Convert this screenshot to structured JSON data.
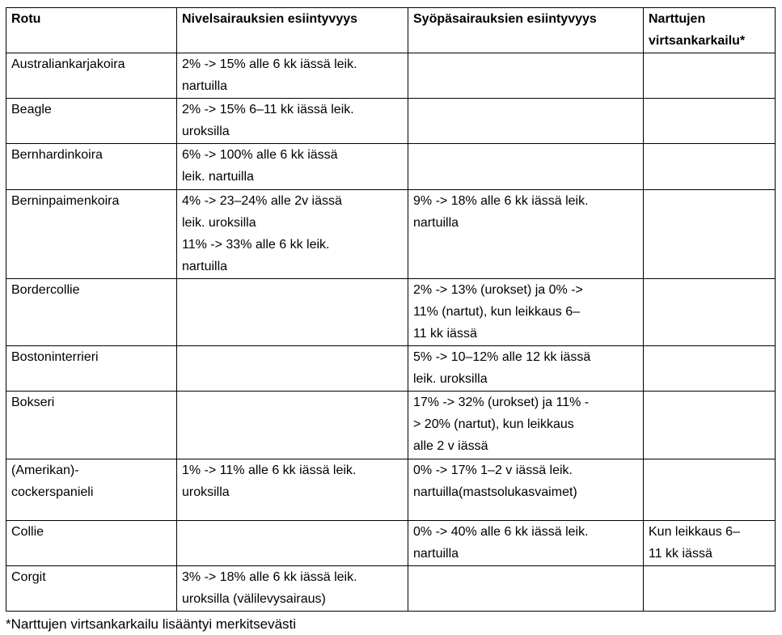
{
  "table": {
    "columns": [
      "Rotu",
      "Nivelsairauksien esiintyvyys",
      "Syöpäsairauksien esiintyvyys",
      "Narttujen virtsankarkailu*"
    ],
    "rows": [
      {
        "breed": "Australiankarjakoira",
        "nivel": "2% -> 15% alle 6 kk iässä leik.\nnartuilla",
        "syopa": "",
        "narttu": ""
      },
      {
        "breed": "Beagle",
        "nivel": "2% -> 15% 6–11 kk iässä leik.\nuroksilla",
        "syopa": "",
        "narttu": ""
      },
      {
        "breed": "Bernhardinkoira",
        "nivel": "6% -> 100% alle 6 kk iässä\nleik. nartuilla",
        "syopa": "",
        "narttu": ""
      },
      {
        "breed": "Berninpaimenkoira",
        "nivel": "4% -> 23–24% alle 2v iässä\nleik. uroksilla\n11% -> 33% alle 6 kk leik.\nnartuilla",
        "syopa": "9% -> 18% alle 6 kk iässä leik.\nnartuilla",
        "narttu": ""
      },
      {
        "breed": "Bordercollie",
        "nivel": "",
        "syopa": "2% -> 13% (urokset) ja 0% ->\n11% (nartut), kun leikkaus 6–\n11 kk iässä",
        "narttu": ""
      },
      {
        "breed": "Bostoninterrieri",
        "nivel": "",
        "syopa": "5% -> 10–12% alle 12 kk iässä\nleik. uroksilla",
        "narttu": ""
      },
      {
        "breed": "Bokseri",
        "nivel": "",
        "syopa": "17% -> 32% (urokset) ja 11% -\n> 20% (nartut), kun leikkaus\nalle 2 v iässä",
        "narttu": ""
      },
      {
        "breed": "(Amerikan)-\ncockerspanieli",
        "nivel": "1% -> 11% alle 6 kk iässä leik.\nuroksilla",
        "syopa": "0% -> 17% 1–2 v iässä leik.\nnartuilla(mastsolukasvaimet)",
        "narttu": ""
      },
      {
        "breed": "Collie",
        "nivel": "",
        "syopa": "0% -> 40% alle 6 kk iässä leik.\nnartuilla",
        "narttu": "Kun leikkaus 6–\n11 kk iässä"
      },
      {
        "breed": "Corgit",
        "nivel": "3% -> 18% alle 6 kk iässä leik.\nuroksilla (välilevysairaus)",
        "syopa": "",
        "narttu": ""
      }
    ]
  },
  "footnote": "*Narttujen virtsankarkailu lisääntyi merkitsevästi"
}
